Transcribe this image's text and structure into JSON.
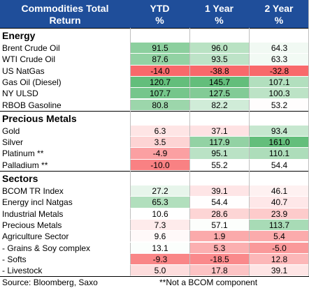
{
  "header": {
    "title": "Commodities Total Return",
    "columns": [
      [
        "YTD",
        "%"
      ],
      [
        "1 Year",
        "%"
      ],
      [
        "2 Year",
        "%"
      ]
    ]
  },
  "sections": [
    {
      "title": "Energy",
      "rows": [
        {
          "label": "Brent Crude Oil",
          "values": [
            "91.5",
            "96.0",
            "64.3"
          ]
        },
        {
          "label": "WTI Crude Oil",
          "values": [
            "87.6",
            "93.5",
            "63.3"
          ]
        },
        {
          "label": "US NatGas",
          "values": [
            "-14.0",
            "-38.8",
            "-32.8"
          ]
        },
        {
          "label": "Gas Oil (Diesel)",
          "values": [
            "120.7",
            "145.7",
            "107.1"
          ]
        },
        {
          "label": "NY ULSD",
          "values": [
            "107.7",
            "127.5",
            "100.3"
          ]
        },
        {
          "label": "RBOB Gasoline",
          "values": [
            "80.8",
            "82.2",
            "53.2"
          ]
        }
      ]
    },
    {
      "title": "Precious Metals",
      "rows": [
        {
          "label": "Gold",
          "values": [
            "6.3",
            "37.1",
            "93.4"
          ]
        },
        {
          "label": "Silver",
          "values": [
            "3.5",
            "117.9",
            "161.0"
          ]
        },
        {
          "label": "Platinum **",
          "values": [
            "-4.9",
            "95.1",
            "110.1"
          ]
        },
        {
          "label": "Palladium **",
          "values": [
            "-10.0",
            "55.2",
            "54.4"
          ]
        }
      ]
    },
    {
      "title": "Sectors",
      "rows": [
        {
          "label": "BCOM TR Index",
          "values": [
            "27.2",
            "39.1",
            "46.1"
          ]
        },
        {
          "label": "Energy incl Natgas",
          "values": [
            "65.3",
            "54.4",
            "40.7"
          ]
        },
        {
          "label": "Industrial Metals",
          "values": [
            "10.6",
            "28.6",
            "23.9"
          ]
        },
        {
          "label": "Precious Metals",
          "values": [
            "7.3",
            "57.1",
            "113.7"
          ]
        },
        {
          "label": "Agriculture Sector",
          "values": [
            "9.6",
            "1.9",
            "5.4"
          ]
        },
        {
          "label": "- Grains & Soy complex",
          "values": [
            "13.1",
            "5.3",
            "-5.0"
          ]
        },
        {
          "label": "- Softs",
          "values": [
            "-9.3",
            "-18.5",
            "12.8"
          ]
        },
        {
          "label": "- Livestock",
          "values": [
            "5.0",
            "17.8",
            "39.1"
          ]
        }
      ]
    }
  ],
  "footer": {
    "source": "Source: Bloomberg, Saxo",
    "note": "**Not a BCOM component"
  }
}
